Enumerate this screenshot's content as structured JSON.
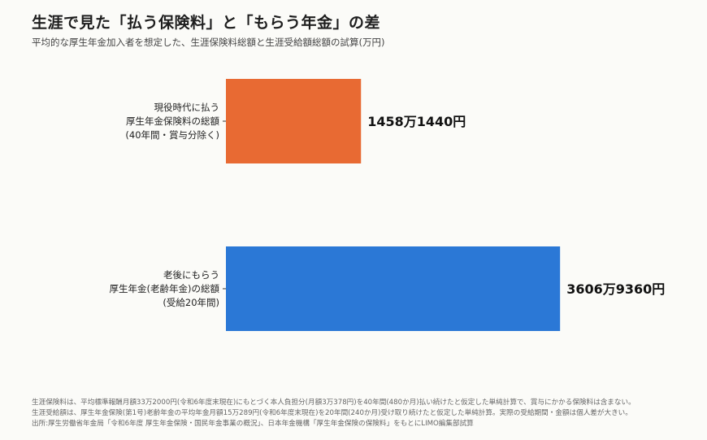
{
  "title": "生涯で見た「払う保険料」と「もらう年金」の差",
  "subtitle": "平均的な厚生年金加入者を想定した、生涯保険料総額と生涯受給額総額の試算(万円)",
  "chart_data": {
    "type": "bar",
    "orientation": "horizontal",
    "categories": [
      [
        "現役時代に払う",
        "厚生年金保険料の総額",
        "(40年間・賞与分除く)"
      ],
      [
        "老後にもらう",
        "厚生年金(老齢年金)の総額",
        "(受給20年間)"
      ]
    ],
    "values": [
      14581440,
      36069360
    ],
    "value_labels": [
      "1458万1440円",
      "3606万9360円"
    ],
    "colors": [
      "#e86a33",
      "#2b78d6"
    ],
    "xlim": [
      0,
      40000000
    ],
    "grid": false,
    "legend": "none"
  },
  "notes": [
    "生涯保険料は、平均標準報酬月額33万2000円(令和6年度末現在)にもとづく本人負担分(月額3万378円)を40年間(480か月)払い続けたと仮定した単純計算で、賞与にかかる保険料は含まない。",
    "生涯受給額は、厚生年金保険(第1号)老齢年金の平均年金月額15万289円(令和6年度末現在)を20年間(240か月)受け取り続けたと仮定した単純計算。実際の受給期間・金額は個人差が大きい。",
    "出所:厚生労働省年金局「令和6年度 厚生年金保険・国民年金事業の概況」、日本年金機構「厚生年金保険の保険料」をもとにLIMO編集部試算"
  ]
}
